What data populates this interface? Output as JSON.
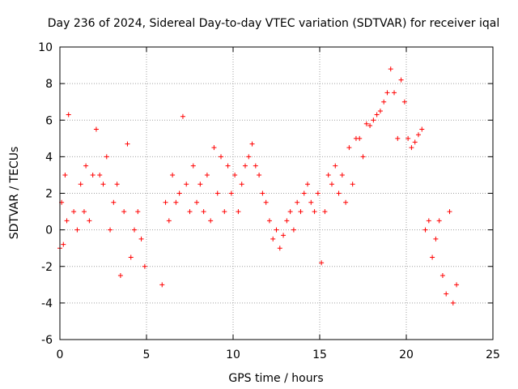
{
  "chart_data": {
    "type": "scatter",
    "title": "Day 236 of 2024, Sidereal Day-to-day VTEC variation (SDTVAR) for receiver iqal",
    "xlabel": "GPS time / hours",
    "ylabel": "SDTVAR / TECUs",
    "xlim": [
      0,
      25
    ],
    "ylim": [
      -6,
      10
    ],
    "xticks": [
      0,
      5,
      10,
      15,
      20,
      25
    ],
    "yticks": [
      -6,
      -4,
      -2,
      0,
      2,
      4,
      6,
      8,
      10
    ],
    "grid": true,
    "marker": "+",
    "color": "#ff0000",
    "series": [
      {
        "name": "SDTVAR",
        "x": [
          0.0,
          0.1,
          0.2,
          0.3,
          0.4,
          0.5,
          0.8,
          1.0,
          1.2,
          1.4,
          1.5,
          1.7,
          1.9,
          2.1,
          2.3,
          2.5,
          2.7,
          2.9,
          3.1,
          3.3,
          3.5,
          3.7,
          3.9,
          4.1,
          4.3,
          4.5,
          4.7,
          4.9,
          5.9,
          6.1,
          6.3,
          6.5,
          6.7,
          6.9,
          7.1,
          7.3,
          7.5,
          7.7,
          7.9,
          8.1,
          8.3,
          8.5,
          8.7,
          8.9,
          9.1,
          9.3,
          9.5,
          9.7,
          9.9,
          10.1,
          10.3,
          10.5,
          10.7,
          10.9,
          11.1,
          11.3,
          11.5,
          11.7,
          11.9,
          12.1,
          12.3,
          12.5,
          12.7,
          12.9,
          13.1,
          13.3,
          13.5,
          13.7,
          13.9,
          14.1,
          14.3,
          14.5,
          14.7,
          14.9,
          15.1,
          15.3,
          15.5,
          15.7,
          15.9,
          16.1,
          16.3,
          16.5,
          16.7,
          16.9,
          17.1,
          17.3,
          17.5,
          17.7,
          17.9,
          18.1,
          18.3,
          18.5,
          18.7,
          18.9,
          19.1,
          19.3,
          19.5,
          19.7,
          19.9,
          20.1,
          20.3,
          20.5,
          20.7,
          20.9,
          21.1,
          21.3,
          21.5,
          21.7,
          21.9,
          22.1,
          22.3,
          22.5,
          22.7,
          22.9
        ],
        "y": [
          -1.0,
          1.5,
          -0.8,
          3.0,
          0.5,
          6.3,
          1.0,
          0.0,
          2.5,
          1.0,
          3.5,
          0.5,
          3.0,
          5.5,
          3.0,
          2.5,
          4.0,
          0.0,
          1.5,
          2.5,
          -2.5,
          1.0,
          4.7,
          -1.5,
          0.0,
          1.0,
          -0.5,
          -2.0,
          -3.0,
          1.5,
          0.5,
          3.0,
          1.5,
          2.0,
          6.2,
          2.5,
          1.0,
          3.5,
          1.5,
          2.5,
          1.0,
          3.0,
          0.5,
          4.5,
          2.0,
          4.0,
          1.0,
          3.5,
          2.0,
          3.0,
          1.0,
          2.5,
          3.5,
          4.0,
          4.7,
          3.5,
          3.0,
          2.0,
          1.5,
          0.5,
          -0.5,
          0.0,
          -1.0,
          -0.3,
          0.5,
          1.0,
          0.0,
          1.5,
          1.0,
          2.0,
          2.5,
          1.5,
          1.0,
          2.0,
          -1.8,
          1.0,
          3.0,
          2.5,
          3.5,
          2.0,
          3.0,
          1.5,
          4.5,
          2.5,
          5.0,
          5.0,
          4.0,
          5.8,
          5.7,
          6.0,
          6.3,
          6.5,
          7.0,
          7.5,
          8.8,
          7.5,
          5.0,
          8.2,
          7.0,
          5.0,
          4.5,
          4.8,
          5.2,
          5.5,
          0.0,
          0.5,
          -1.5,
          -0.5,
          0.5,
          -2.5,
          -3.5,
          1.0,
          -4.0,
          -3.0
        ]
      }
    ]
  }
}
